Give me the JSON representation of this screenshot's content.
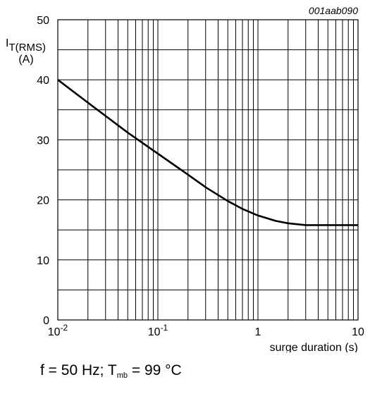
{
  "chart_data": {
    "type": "line",
    "figure_id": "001aab090",
    "ylabel": {
      "main": "I",
      "sub": "T(RMS)",
      "unit": "(A)"
    },
    "xlabel": "surge duration (s)",
    "x_scale": "log",
    "xlim": [
      0.01,
      10
    ],
    "ylim": [
      0,
      50
    ],
    "grid": true,
    "y_ticks": [
      "0",
      "10",
      "20",
      "30",
      "40",
      "50"
    ],
    "x_ticks": [
      {
        "value": 0.01,
        "base": "10",
        "exp": "-2"
      },
      {
        "value": 0.1,
        "base": "10",
        "exp": "-1"
      },
      {
        "value": 1,
        "base": "1",
        "exp": ""
      },
      {
        "value": 10,
        "base": "10",
        "exp": ""
      }
    ],
    "series": [
      {
        "x": [
          0.01,
          0.02,
          0.05,
          0.1,
          0.2,
          0.3,
          0.5,
          0.7,
          1,
          1.5,
          2,
          3,
          5,
          10
        ],
        "y": [
          40,
          36.2,
          31.2,
          27.7,
          24.2,
          22.1,
          19.8,
          18.5,
          17.4,
          16.5,
          16.1,
          15.8,
          15.8,
          15.8
        ]
      }
    ]
  },
  "caption": {
    "prefix": "f = 50 Hz; T",
    "sub": "mb",
    "suffix": " = 99 °C"
  }
}
